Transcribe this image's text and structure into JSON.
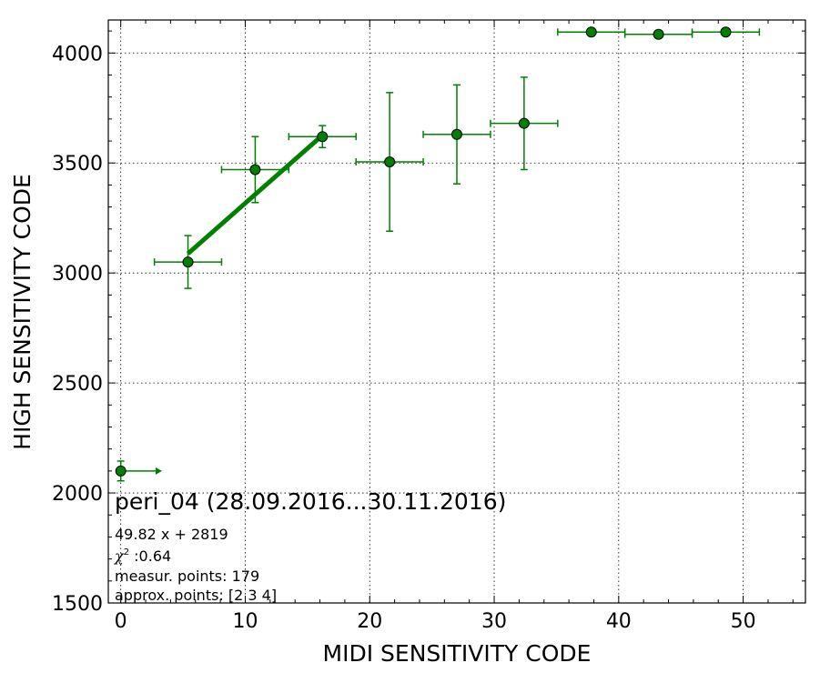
{
  "chart_data": {
    "type": "scatter",
    "title": "peri_04 (28.09.2016...30.11.2016)",
    "xlabel": "MIDI SENSITIVITY CODE",
    "ylabel": "HIGH SENSITIVITY CODE",
    "xlim": [
      -1,
      55
    ],
    "ylim": [
      1500,
      4150
    ],
    "xticks": [
      0,
      10,
      20,
      30,
      40,
      50
    ],
    "xtick_labels": [
      "0",
      "10",
      "20",
      "30",
      "40",
      "50"
    ],
    "yticks": [
      1500,
      2000,
      2500,
      3000,
      3500,
      4000
    ],
    "ytick_labels": [
      "1500",
      "2000",
      "2500",
      "3000",
      "3500",
      "4000"
    ],
    "grid": true,
    "color": "#008000",
    "points": [
      {
        "x": 0,
        "y": 2100,
        "yerr": 45,
        "xerr": 2.8,
        "xerr_side": "right-arrow"
      },
      {
        "x": 5.4,
        "y": 3050,
        "yerr": 120,
        "xerr": 2.7
      },
      {
        "x": 10.8,
        "y": 3470,
        "yerr": 150,
        "xerr": 2.7
      },
      {
        "x": 16.2,
        "y": 3620,
        "yerr": 50,
        "xerr": 2.7
      },
      {
        "x": 21.6,
        "y": 3505,
        "yerr": 315,
        "xerr": 2.7
      },
      {
        "x": 27.0,
        "y": 3630,
        "yerr": 225,
        "xerr": 2.7
      },
      {
        "x": 32.4,
        "y": 3680,
        "yerr": 210,
        "xerr": 2.7
      },
      {
        "x": 37.8,
        "y": 4095,
        "yerr": 0,
        "xerr": 2.7
      },
      {
        "x": 43.2,
        "y": 4085,
        "yerr": 0,
        "xerr": 2.7
      },
      {
        "x": 48.6,
        "y": 4095,
        "yerr": 0,
        "xerr": 2.7
      }
    ],
    "fit_line": {
      "slope": 49.82,
      "intercept": 2819,
      "x_range": [
        5.4,
        16.2
      ]
    },
    "annotations": {
      "equation": "49.82 x + 2819",
      "chi2_symbol": "χ",
      "chi2_sup": "2",
      "chi2_value": " :0.64",
      "measured": "measur. points: 179",
      "approx": "approx. points: [2 3 4]"
    }
  }
}
